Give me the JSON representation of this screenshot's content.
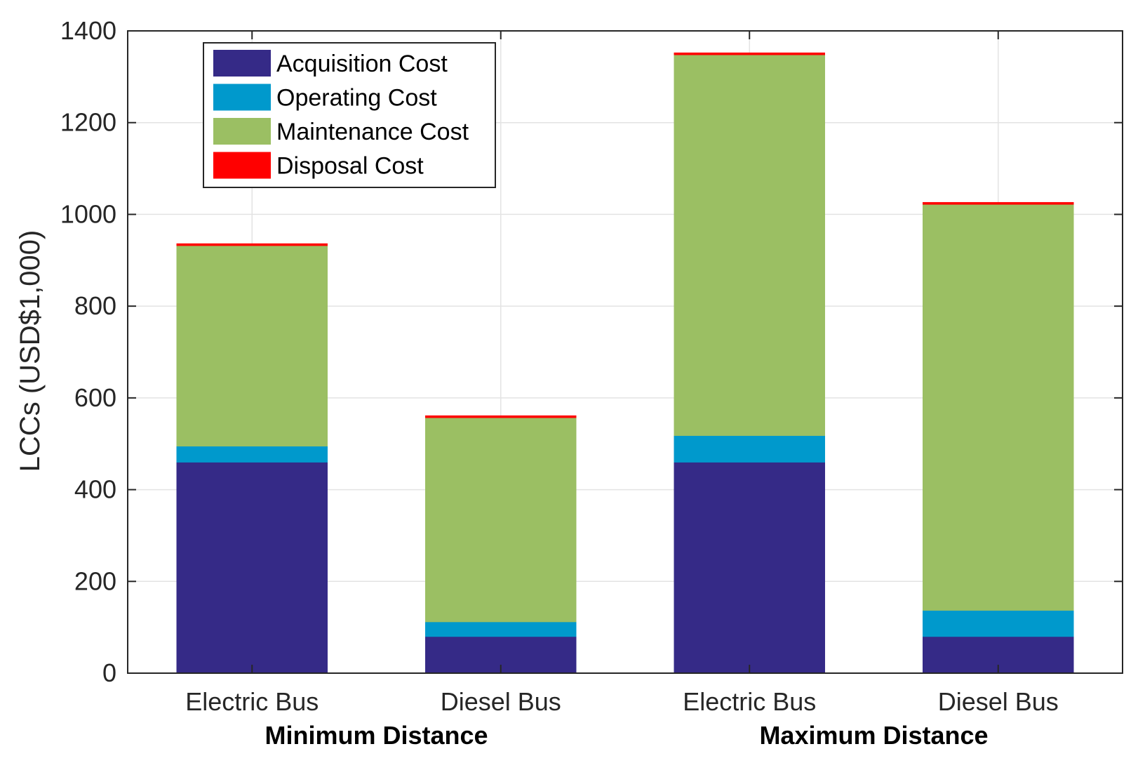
{
  "chart_data": {
    "type": "bar",
    "stacked": true,
    "title": "",
    "xlabel": "",
    "ylabel": "LCCs (USD$1,000)",
    "ylim": [
      0,
      1400
    ],
    "yticks": [
      0,
      200,
      400,
      600,
      800,
      1000,
      1200,
      1400
    ],
    "grid": true,
    "legend_position": "top-left",
    "categories": [
      "Electric Bus",
      "Diesel Bus",
      "Electric Bus",
      "Diesel Bus"
    ],
    "groups": [
      {
        "label": "Minimum Distance",
        "categories": [
          0,
          1
        ]
      },
      {
        "label": "Maximum Distance",
        "categories": [
          2,
          3
        ]
      }
    ],
    "series": [
      {
        "name": "Acquisition Cost",
        "color": "#352A87",
        "values": [
          460,
          80,
          460,
          80
        ]
      },
      {
        "name": "Operating Cost",
        "color": "#0099CC",
        "values": [
          35,
          32,
          58,
          57
        ]
      },
      {
        "name": "Maintenance Cost",
        "color": "#9BBF63",
        "values": [
          437,
          445,
          830,
          885
        ]
      },
      {
        "name": "Disposal Cost",
        "color": "#FF0000",
        "values": [
          4,
          4,
          4,
          4
        ]
      }
    ]
  }
}
